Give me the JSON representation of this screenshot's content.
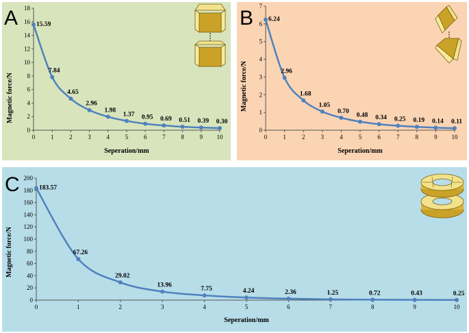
{
  "chart_data": [
    {
      "panel": "A",
      "type": "line",
      "xlabel": "Seperation/mm",
      "ylabel": "Magnetic force/N",
      "xlim": [
        0,
        10
      ],
      "ylim": [
        0,
        18
      ],
      "x_ticks": [
        0,
        1,
        2,
        3,
        4,
        5,
        6,
        7,
        8,
        9,
        10
      ],
      "y_ticks": [
        0,
        2,
        4,
        6,
        8,
        10,
        12,
        14,
        16,
        18
      ],
      "x": [
        0,
        1,
        2,
        3,
        4,
        5,
        6,
        7,
        8,
        9,
        10
      ],
      "values": [
        15.59,
        7.84,
        4.65,
        2.96,
        1.98,
        1.37,
        0.95,
        0.69,
        0.51,
        0.39,
        0.3
      ],
      "labels": [
        "15.59",
        "7.84",
        "4.65",
        "2.96",
        "1.98",
        "1.37",
        "0.95",
        "0.69",
        "0.51",
        "0.39",
        "0.30"
      ]
    },
    {
      "panel": "B",
      "type": "line",
      "xlabel": "Seperation/mm",
      "ylabel": "Magnetic force/N",
      "xlim": [
        0,
        10
      ],
      "ylim": [
        0,
        7
      ],
      "x_ticks": [
        0,
        1,
        2,
        3,
        4,
        5,
        6,
        7,
        8,
        9,
        10
      ],
      "y_ticks": [
        0,
        1,
        2,
        3,
        4,
        5,
        6,
        7
      ],
      "x": [
        0,
        1,
        2,
        3,
        4,
        5,
        6,
        7,
        8,
        9,
        10
      ],
      "values": [
        6.24,
        2.96,
        1.68,
        1.05,
        0.7,
        0.48,
        0.34,
        0.25,
        0.19,
        0.14,
        0.11
      ],
      "labels": [
        "6.24",
        "2.96",
        "1.68",
        "1.05",
        "0.70",
        "0.48",
        "0.34",
        "0.25",
        "0.19",
        "0.14",
        "0.11"
      ]
    },
    {
      "panel": "C",
      "type": "line",
      "xlabel": "Seperation/mm",
      "ylabel": "Magnetic force/N",
      "xlim": [
        0,
        10
      ],
      "ylim": [
        0,
        200
      ],
      "x_ticks": [
        0,
        1,
        2,
        3,
        4,
        5,
        6,
        7,
        8,
        9,
        10
      ],
      "y_ticks": [
        0,
        20,
        40,
        60,
        80,
        100,
        120,
        140,
        160,
        180,
        200
      ],
      "x": [
        0,
        1,
        2,
        3,
        4,
        5,
        6,
        7,
        8,
        9,
        10
      ],
      "values": [
        183.57,
        67.26,
        29.02,
        13.96,
        7.75,
        4.24,
        2.36,
        1.25,
        0.72,
        0.43,
        0.25
      ],
      "labels": [
        "183.57",
        "67.26",
        "29.02",
        "13.96",
        "7.75",
        "4.24",
        "2.36",
        "1.25",
        "0.72",
        "0.43",
        "0.25"
      ]
    }
  ],
  "colors": {
    "line": "#4f81bd",
    "panel_a_bg": "#d8e4bc",
    "panel_b_bg": "#fbd4b4",
    "panel_c_bg": "#b7dde8",
    "magnet": "#c9a227"
  }
}
